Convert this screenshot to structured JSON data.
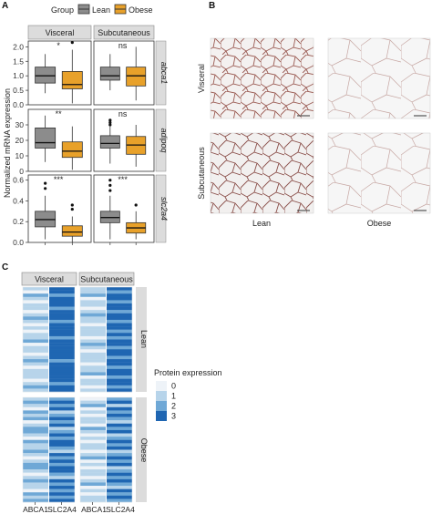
{
  "panels": {
    "a": "A",
    "b": "B",
    "c": "C"
  },
  "panel_a": {
    "legend_title": "Group",
    "legend_items": [
      {
        "name": "Lean",
        "color": "#8c8c8c"
      },
      {
        "name": "Obese",
        "color": "#e8a12a"
      }
    ],
    "facet_cols": [
      "Visceral",
      "Subcutaneous"
    ],
    "y_label": "Normalized mRNA expression"
  },
  "panel_b": {
    "row_labels": [
      "Visceral",
      "Subcutaneous"
    ],
    "col_labels": [
      "Lean",
      "Obese"
    ]
  },
  "panel_c": {
    "facet_cols": [
      "Visceral",
      "Subcutaneous"
    ],
    "facet_rows": [
      "Lean",
      "Obese"
    ],
    "x_labels": [
      "ABCA1",
      "SLC2A4"
    ],
    "legend_title": "Protein expression",
    "legend_items": [
      {
        "level": "0",
        "color": "#eef3f8"
      },
      {
        "level": "1",
        "color": "#b7d4ea"
      },
      {
        "level": "2",
        "color": "#6fa8d6"
      },
      {
        "level": "3",
        "color": "#1f66b2"
      }
    ]
  },
  "chart_data": [
    {
      "type": "box",
      "facets": [
        "Visceral",
        "Subcutaneous"
      ],
      "groups": [
        "Lean",
        "Obese"
      ],
      "rows": [
        {
          "gene": "abca1",
          "ylim": [
            0,
            2.2
          ],
          "yticks": [
            "0.0",
            "0.5",
            "1.0",
            "1.5",
            "2.0"
          ],
          "annotations": [
            "*",
            "ns"
          ],
          "boxes": [
            [
              {
                "min": 0.4,
                "q1": 0.75,
                "median": 1.0,
                "q3": 1.3,
                "max": 1.75,
                "outliers": []
              },
              {
                "min": 0.05,
                "q1": 0.55,
                "median": 0.7,
                "q3": 1.15,
                "max": 1.9,
                "outliers": [
                  2.15
                ]
              }
            ],
            [
              {
                "min": 0.5,
                "q1": 0.85,
                "median": 1.0,
                "q3": 1.3,
                "max": 1.75,
                "outliers": []
              },
              {
                "min": 0.15,
                "q1": 0.65,
                "median": 1.0,
                "q3": 1.3,
                "max": 2.0,
                "outliers": []
              }
            ]
          ]
        },
        {
          "gene": "adipoq",
          "ylim": [
            0,
            40
          ],
          "yticks": [
            "0",
            "10",
            "20",
            "30"
          ],
          "annotations": [
            "**",
            "ns"
          ],
          "boxes": [
            [
              {
                "min": 6,
                "q1": 15,
                "median": 18.5,
                "q3": 28,
                "max": 36,
                "outliers": []
              },
              {
                "min": 1,
                "q1": 9,
                "median": 13,
                "q3": 19,
                "max": 29,
                "outliers": []
              }
            ],
            [
              {
                "min": 5,
                "q1": 15,
                "median": 18,
                "q3": 23,
                "max": 29,
                "outliers": [
                  30,
                  31.5,
                  33
                ]
              },
              {
                "min": 3,
                "q1": 11,
                "median": 17,
                "q3": 22.5,
                "max": 30,
                "outliers": []
              }
            ]
          ]
        },
        {
          "gene": "slc2a4",
          "ylim": [
            0,
            0.65
          ],
          "yticks": [
            "0.0",
            "0.2",
            "0.4",
            "0.6"
          ],
          "annotations": [
            "***",
            "***"
          ],
          "boxes": [
            [
              {
                "min": 0.03,
                "q1": 0.15,
                "median": 0.22,
                "q3": 0.3,
                "max": 0.45,
                "outliers": [
                  0.57,
                  0.52
                ]
              },
              {
                "min": 0.0,
                "q1": 0.06,
                "median": 0.1,
                "q3": 0.16,
                "max": 0.25,
                "outliers": [
                  0.32,
                  0.36
                ]
              }
            ],
            [
              {
                "min": 0.03,
                "q1": 0.19,
                "median": 0.24,
                "q3": 0.3,
                "max": 0.45,
                "outliers": [
                  0.5,
                  0.55,
                  0.6
                ]
              },
              {
                "min": 0.03,
                "q1": 0.09,
                "median": 0.14,
                "q3": 0.19,
                "max": 0.3,
                "outliers": [
                  0.36
                ]
              }
            ]
          ]
        }
      ]
    },
    {
      "type": "heatmap",
      "facets": [
        "Visceral",
        "Subcutaneous"
      ],
      "row_groups": [
        "Lean",
        "Obese"
      ],
      "columns": [
        "ABCA1",
        "SLC2A4"
      ],
      "levels": [
        0,
        1,
        2,
        3
      ],
      "values": {
        "Visceral": {
          "Lean": {
            "ABCA1": [
              1,
              0,
              2,
              1,
              0,
              1,
              1,
              0,
              1,
              2,
              1,
              0,
              1,
              0,
              1,
              1,
              2,
              0,
              1,
              1,
              0,
              1,
              2,
              1,
              0,
              1,
              1,
              1,
              0,
              1,
              2,
              1
            ],
            "SLC2A4": [
              3,
              3,
              2,
              3,
              3,
              3,
              2,
              3,
              3,
              3,
              2,
              3,
              3,
              3,
              3,
              2,
              3,
              3,
              3,
              3,
              3,
              3,
              2,
              3,
              3,
              3,
              3,
              3,
              3,
              2,
              3,
              3
            ]
          },
          "Obese": {
            "ABCA1": [
              1,
              2,
              1,
              0,
              2,
              1,
              2,
              0,
              1,
              2,
              2,
              1,
              0,
              2,
              1,
              1,
              2,
              1,
              0,
              1,
              2,
              2,
              1,
              0,
              1,
              2,
              1,
              1,
              0,
              2,
              1,
              2
            ],
            "SLC2A4": [
              2,
              3,
              2,
              3,
              1,
              2,
              3,
              2,
              3,
              1,
              2,
              3,
              2,
              3,
              3,
              2,
              1,
              3,
              2,
              3,
              2,
              3,
              3,
              2,
              1,
              3,
              2,
              3,
              2,
              3,
              2,
              3
            ]
          }
        },
        "Subcutaneous": {
          "Lean": {
            "ABCA1": [
              1,
              1,
              2,
              0,
              1,
              1,
              0,
              1,
              2,
              1,
              1,
              0,
              1,
              1,
              1,
              0,
              1,
              2,
              1,
              0,
              1,
              1,
              1,
              0,
              1,
              1,
              2,
              0,
              1,
              1,
              0,
              1
            ],
            "SLC2A4": [
              3,
              2,
              3,
              3,
              2,
              3,
              3,
              2,
              3,
              3,
              2,
              3,
              3,
              2,
              3,
              2,
              3,
              3,
              2,
              3,
              3,
              2,
              3,
              3,
              2,
              3,
              3,
              2,
              3,
              3,
              2,
              3
            ]
          },
          "Obese": {
            "ABCA1": [
              0,
              1,
              2,
              0,
              1,
              0,
              1,
              1,
              0,
              2,
              1,
              0,
              1,
              0,
              1,
              1,
              0,
              1,
              2,
              0,
              1,
              0,
              1,
              1,
              0,
              1,
              2,
              0,
              1,
              0,
              1,
              1
            ],
            "SLC2A4": [
              2,
              3,
              1,
              3,
              2,
              3,
              2,
              1,
              3,
              2,
              3,
              1,
              2,
              3,
              2,
              3,
              1,
              2,
              3,
              2,
              3,
              1,
              2,
              3,
              2,
              3,
              2,
              1,
              3,
              2,
              3,
              2
            ]
          }
        }
      }
    }
  ]
}
